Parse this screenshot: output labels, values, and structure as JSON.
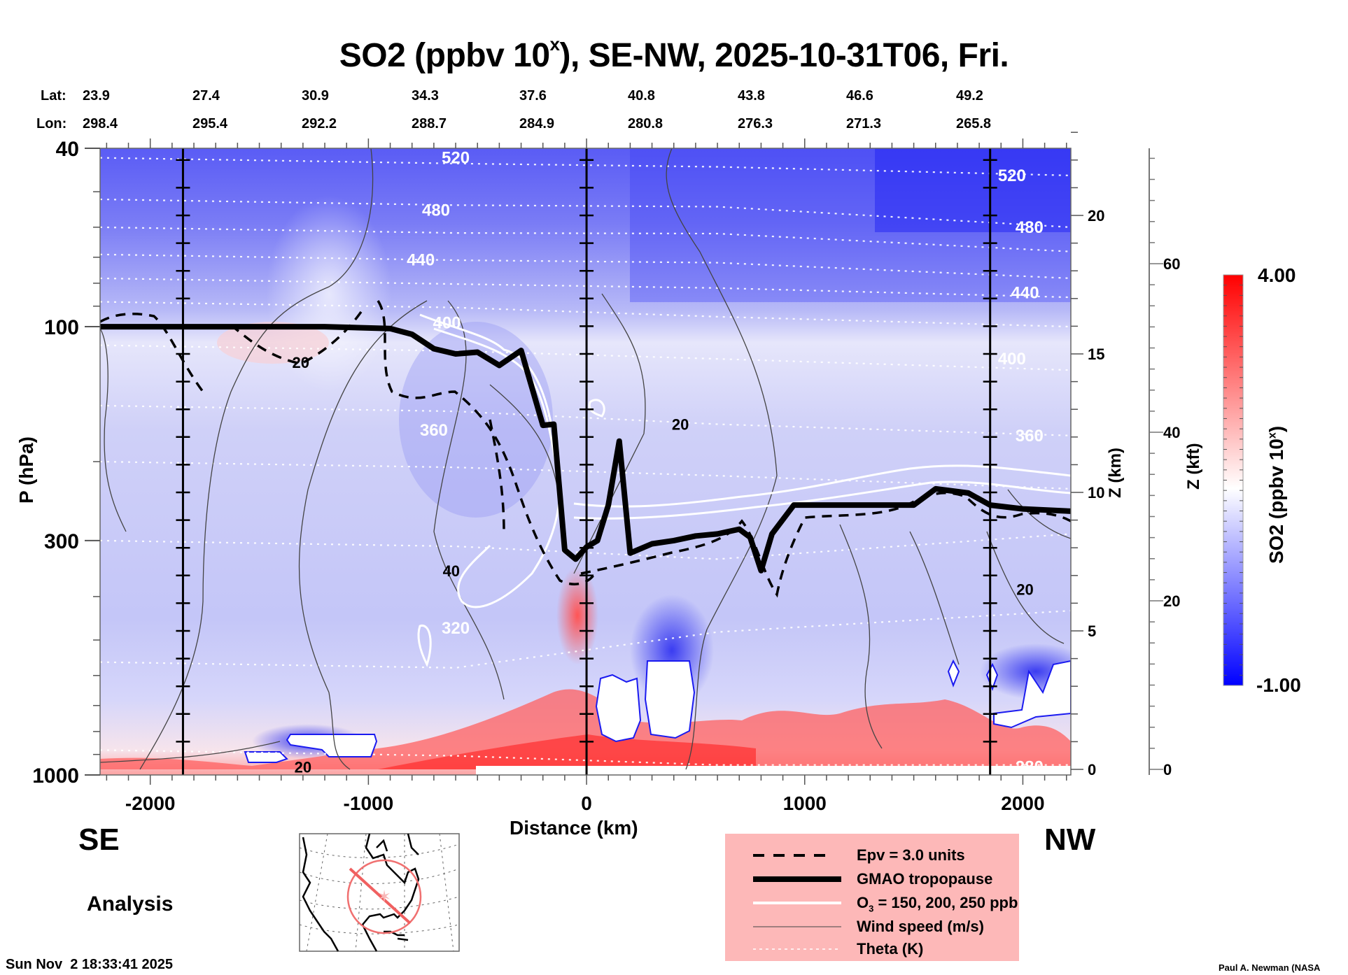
{
  "chart_data": {
    "type": "heatmap",
    "title": "SO2 (ppbv 10^x), SE-NW, 2025-10-31T06, Fri.",
    "title_parts": {
      "prefix": "SO2 (ppbv 10",
      "sup": "x",
      "suffix": "), SE-NW, 2025-10-31T06, Fri."
    },
    "xlabel": "Distance (km)",
    "ylabel": "P (hPa)",
    "y2label": "Z (km)",
    "y3label": "Z (kft)",
    "xlim": [
      -2230,
      2220
    ],
    "ylim_hpa": [
      1000,
      40
    ],
    "y_scale": "log",
    "x_ticks": [
      -2000,
      -1000,
      0,
      1000,
      2000
    ],
    "x_tick_labels": [
      "-2000",
      "-1000",
      "0",
      "1000",
      "2000"
    ],
    "y_ticks": [
      40,
      100,
      300,
      1000
    ],
    "y_tick_labels": [
      "40",
      "100",
      "300",
      "1000"
    ],
    "z_km_ticks": [
      0,
      5,
      10,
      15,
      20
    ],
    "z_km_tick_labels": [
      "0",
      "5",
      "10",
      "15",
      "20"
    ],
    "z_kft_ticks": [
      0,
      20,
      40,
      60
    ],
    "z_kft_tick_labels": [
      "0",
      "20",
      "40",
      "60"
    ],
    "vertical_markers_km": [
      -1850,
      0,
      1850
    ],
    "lat_label": "Lat:",
    "lon_label": "Lon:",
    "lat": [
      "23.9",
      "27.4",
      "30.9",
      "34.3",
      "37.6",
      "40.8",
      "43.8",
      "46.6",
      "49.2"
    ],
    "lon": [
      "298.4",
      "295.4",
      "292.2",
      "288.7",
      "284.9",
      "280.8",
      "276.3",
      "271.3",
      "265.8"
    ],
    "latlon_distance_km": [
      -1850,
      -1390,
      -930,
      -470,
      0,
      470,
      930,
      1390,
      1850
    ],
    "colorbar": {
      "label": "SO2 (ppbv 10^x)",
      "label_prefix": "SO2 (ppbv 10",
      "label_sup": "x",
      "label_suffix": ")",
      "min": -1.0,
      "max": 4.0,
      "min_label": "-1.00",
      "max_label": "4.00",
      "colors": {
        "low": "#0000ff",
        "mid": "#ffffff",
        "high": "#ff0000"
      }
    },
    "theta_labels": [
      {
        "value": "520",
        "x_km": -600,
        "p_hpa": 42
      },
      {
        "value": "480",
        "x_km": -690,
        "p_hpa": 55
      },
      {
        "value": "440",
        "x_km": -760,
        "p_hpa": 71
      },
      {
        "value": "400",
        "x_km": -640,
        "p_hpa": 98
      },
      {
        "value": "360",
        "x_km": -700,
        "p_hpa": 170
      },
      {
        "value": "320",
        "x_km": -600,
        "p_hpa": 470
      },
      {
        "value": "520",
        "x_km": 1950,
        "p_hpa": 46
      },
      {
        "value": "480",
        "x_km": 2030,
        "p_hpa": 60
      },
      {
        "value": "440",
        "x_km": 2010,
        "p_hpa": 84
      },
      {
        "value": "400",
        "x_km": 1950,
        "p_hpa": 118
      },
      {
        "value": "360",
        "x_km": 2030,
        "p_hpa": 175
      },
      {
        "value": "280",
        "x_km": 2030,
        "p_hpa": 960
      }
    ],
    "wind_labels": [
      {
        "value": "20",
        "x_km": -1310,
        "p_hpa": 120
      },
      {
        "value": "20",
        "x_km": 430,
        "p_hpa": 165
      },
      {
        "value": "40",
        "x_km": -620,
        "p_hpa": 350
      },
      {
        "value": "20",
        "x_km": 2010,
        "p_hpa": 385
      },
      {
        "value": "20",
        "x_km": -1300,
        "p_hpa": 960
      }
    ],
    "tropopause_hpa": {
      "x_km": [
        -2230,
        -1200,
        -900,
        -800,
        -700,
        -600,
        -500,
        -400,
        -300,
        -200,
        -150,
        -100,
        -50,
        0,
        50,
        100,
        150,
        200,
        300,
        400,
        500,
        600,
        700,
        750,
        800,
        850,
        950,
        1000,
        1200,
        1500,
        1600,
        1750,
        1850,
        2000,
        2220
      ],
      "p_hpa": [
        100,
        100,
        101,
        104,
        112,
        115,
        114,
        122,
        113,
        166,
        165,
        315,
        330,
        310,
        300,
        250,
        180,
        320,
        305,
        300,
        293,
        290,
        283,
        295,
        350,
        290,
        250,
        250,
        250,
        250,
        230,
        235,
        250,
        255,
        258
      ]
    },
    "legend": {
      "position": "bottom-center",
      "items": [
        {
          "label": "Epv = 3.0 units",
          "style": "dashed-black"
        },
        {
          "label": "GMAO tropopause",
          "style": "thick-black"
        },
        {
          "label_prefix": "O",
          "label_sub": "3",
          "label_suffix": " = 150, 200, 250 ppb",
          "style": "white"
        },
        {
          "label": "Wind speed (m/s)",
          "style": "thin-black"
        },
        {
          "label": "Theta (K)",
          "style": "dotted-white"
        }
      ]
    }
  },
  "labels": {
    "se": "SE",
    "nw": "NW",
    "analysis": "Analysis",
    "timestamp": "Sun Nov  2 18:33:41 2025",
    "credit": "Paul A. Newman (NASA"
  },
  "inset_map": {
    "region": "North America",
    "track": "SE-NW"
  }
}
